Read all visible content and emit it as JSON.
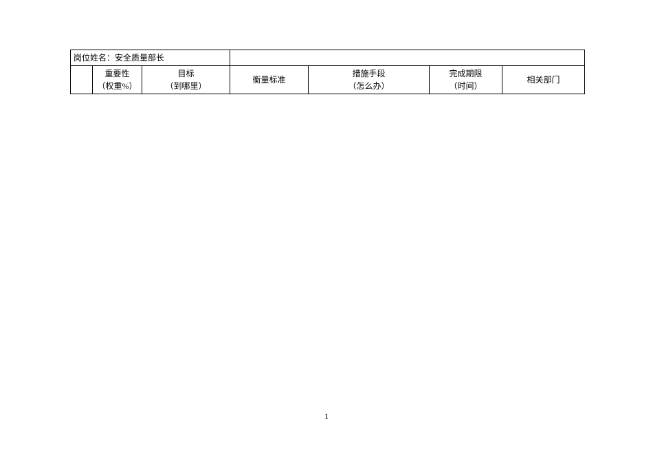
{
  "table": {
    "title_label": "岗位姓名：",
    "title_value": "安全质量部长",
    "headers": {
      "col1": "",
      "importance_line1": "重要性",
      "importance_line2": "（权重%）",
      "target_line1": "目标",
      "target_line2": "（到哪里）",
      "standard": "衡量标准",
      "measure_line1": "措施手段",
      "measure_line2": "（怎么办）",
      "deadline_line1": "完成期限",
      "deadline_line2": "（时间）",
      "dept": "相关部门"
    }
  },
  "page_number": "1"
}
